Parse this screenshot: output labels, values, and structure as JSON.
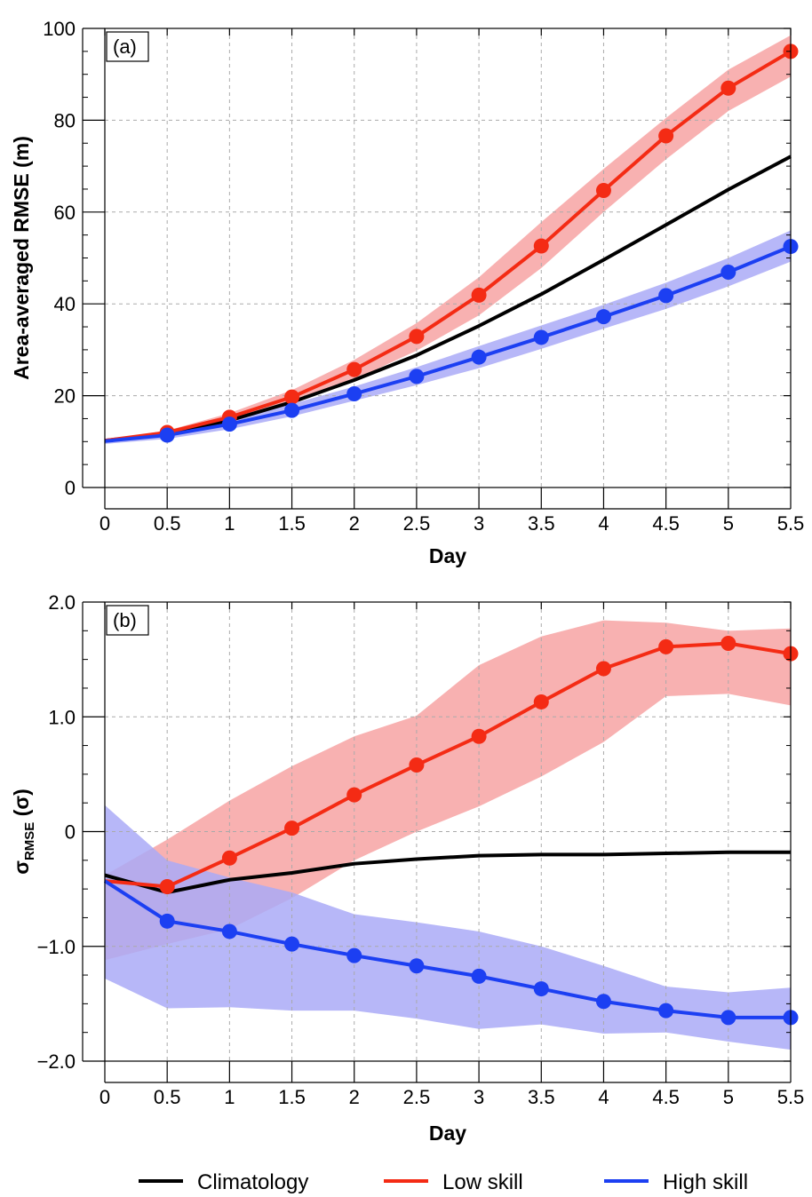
{
  "colors": {
    "climatology": "#000000",
    "low_skill": "#f42b14",
    "low_skill_band": "#f7a3a3",
    "high_skill": "#1c3ff2",
    "high_skill_band": "#aaaaf7",
    "grid": "#aaaaaa"
  },
  "legend": {
    "position": "bottom",
    "items": [
      {
        "key": "climatology",
        "label": "Climatology"
      },
      {
        "key": "low_skill",
        "label": "Low skill"
      },
      {
        "key": "high_skill",
        "label": "High skill"
      }
    ]
  },
  "chart_data": [
    {
      "type": "line",
      "panel_label": "(a)",
      "xlabel": "Day",
      "ylabel": "Area-averaged RMSE (m)",
      "xlim": [
        0,
        5.5
      ],
      "ylim": [
        0,
        100
      ],
      "xticks": [
        0,
        0.5,
        1,
        1.5,
        2,
        2.5,
        3,
        3.5,
        4,
        4.5,
        5,
        5.5
      ],
      "xtick_labels": [
        "0",
        "0.5",
        "1",
        "1.5",
        "2",
        "2.5",
        "3",
        "3.5",
        "4",
        "4.5",
        "5",
        "5.5"
      ],
      "yticks": [
        0,
        20,
        40,
        60,
        80,
        100
      ],
      "ytick_labels": [
        "0",
        "20",
        "40",
        "60",
        "80",
        "100"
      ],
      "grid": true,
      "series": [
        {
          "name": "Climatology",
          "key": "climatology",
          "markers": false,
          "x": [
            0,
            0.5,
            1,
            1.5,
            2,
            2.5,
            3,
            3.5,
            4,
            4.5,
            5,
            5.5
          ],
          "y": [
            10.2,
            11.8,
            14.6,
            18.6,
            23.4,
            28.8,
            35.2,
            42.1,
            49.6,
            57.2,
            64.9,
            72.1
          ]
        },
        {
          "name": "Low skill",
          "key": "low_skill",
          "markers": true,
          "x": [
            0,
            0.5,
            1,
            1.5,
            2,
            2.5,
            3,
            3.5,
            4,
            4.5,
            5,
            5.5
          ],
          "y": [
            10.2,
            12.0,
            15.3,
            19.7,
            25.7,
            32.9,
            41.9,
            52.6,
            64.7,
            76.6,
            87.0,
            95.0
          ],
          "band_low": [
            10.0,
            11.5,
            14.4,
            18.4,
            23.5,
            29.8,
            37.5,
            47.8,
            60.0,
            71.5,
            82.0,
            89.5
          ],
          "band_high": [
            10.4,
            12.4,
            16.2,
            21.2,
            27.8,
            35.8,
            45.8,
            57.8,
            69.4,
            80.5,
            91.0,
            98.5
          ]
        },
        {
          "name": "High skill",
          "key": "high_skill",
          "markers": true,
          "x": [
            0,
            0.5,
            1,
            1.5,
            2,
            2.5,
            3,
            3.5,
            4,
            4.5,
            5,
            5.5
          ],
          "y": [
            10.1,
            11.4,
            13.8,
            16.8,
            20.4,
            24.2,
            28.4,
            32.7,
            37.2,
            41.8,
            46.9,
            52.5
          ],
          "band_low": [
            9.5,
            10.6,
            12.7,
            15.5,
            18.9,
            22.3,
            26.0,
            30.2,
            34.6,
            38.9,
            43.8,
            49.2
          ],
          "band_high": [
            10.6,
            12.2,
            14.9,
            18.2,
            22.0,
            26.2,
            30.8,
            35.3,
            39.8,
            44.6,
            50.0,
            56.0
          ]
        }
      ]
    },
    {
      "type": "line",
      "panel_label": "(b)",
      "xlabel": "Day",
      "ylabel_main": "σ",
      "ylabel_sub": "RMSE",
      "ylabel_rest": " (σ)",
      "xlim": [
        0,
        5.5
      ],
      "ylim": [
        -2.0,
        2.0
      ],
      "xticks": [
        0,
        0.5,
        1,
        1.5,
        2,
        2.5,
        3,
        3.5,
        4,
        4.5,
        5,
        5.5
      ],
      "xtick_labels": [
        "0",
        "0.5",
        "1",
        "1.5",
        "2",
        "2.5",
        "3",
        "3.5",
        "4",
        "4.5",
        "5",
        "5.5"
      ],
      "yticks": [
        -2.0,
        -1.0,
        0,
        1.0,
        2.0
      ],
      "ytick_labels": [
        "−2.0",
        "−1.0",
        "0",
        "1.0",
        "2.0"
      ],
      "grid": true,
      "series": [
        {
          "name": "Climatology",
          "key": "climatology",
          "markers": false,
          "x": [
            0,
            0.5,
            1,
            1.5,
            2,
            2.5,
            3,
            3.5,
            4,
            4.5,
            5,
            5.5
          ],
          "y": [
            -0.38,
            -0.53,
            -0.42,
            -0.36,
            -0.28,
            -0.24,
            -0.21,
            -0.2,
            -0.2,
            -0.19,
            -0.18,
            -0.18
          ]
        },
        {
          "name": "Low skill",
          "key": "low_skill",
          "markers": true,
          "x": [
            0,
            0.5,
            1,
            1.5,
            2,
            2.5,
            3,
            3.5,
            4,
            4.5,
            5,
            5.5
          ],
          "y": [
            -0.43,
            -0.48,
            -0.23,
            0.03,
            0.32,
            0.58,
            0.83,
            1.13,
            1.42,
            1.61,
            1.64,
            1.55
          ],
          "band_low": [
            -1.12,
            -0.98,
            -0.85,
            -0.58,
            -0.25,
            0.0,
            0.22,
            0.48,
            0.78,
            1.18,
            1.2,
            1.1
          ],
          "band_high": [
            -0.38,
            -0.07,
            0.27,
            0.57,
            0.83,
            1.01,
            1.45,
            1.7,
            1.84,
            1.82,
            1.75,
            1.77
          ]
        },
        {
          "name": "High skill",
          "key": "high_skill",
          "markers": true,
          "x": [
            0,
            0.5,
            1,
            1.5,
            2,
            2.5,
            3,
            3.5,
            4,
            4.5,
            5,
            5.5
          ],
          "y": [
            -0.43,
            -0.78,
            -0.87,
            -0.98,
            -1.08,
            -1.17,
            -1.26,
            -1.37,
            -1.48,
            -1.56,
            -1.62,
            -1.62
          ],
          "band_low": [
            -1.28,
            -1.54,
            -1.53,
            -1.56,
            -1.56,
            -1.63,
            -1.72,
            -1.68,
            -1.76,
            -1.75,
            -1.83,
            -1.9
          ],
          "band_high": [
            0.23,
            -0.25,
            -0.4,
            -0.53,
            -0.72,
            -0.79,
            -0.87,
            -1.0,
            -1.17,
            -1.35,
            -1.4,
            -1.36
          ]
        }
      ]
    }
  ]
}
